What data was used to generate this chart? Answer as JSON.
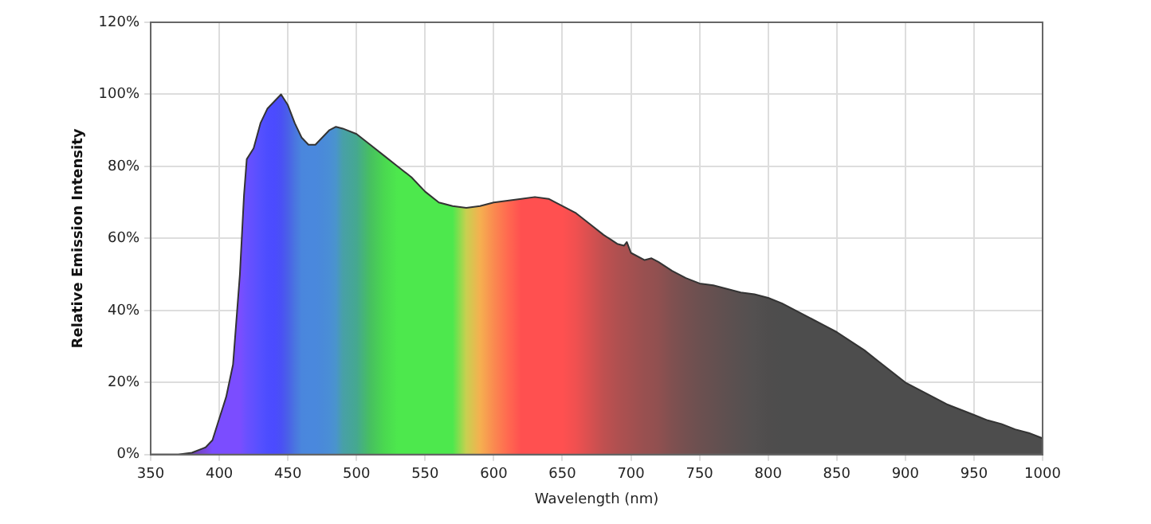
{
  "chart_data": {
    "type": "area",
    "xlabel": "Wavelength (nm)",
    "ylabel": "Relative Emission Intensity",
    "x": [
      350,
      370,
      380,
      390,
      395,
      400,
      405,
      410,
      415,
      418,
      420,
      425,
      430,
      435,
      440,
      445,
      450,
      455,
      460,
      465,
      470,
      475,
      480,
      485,
      490,
      500,
      510,
      520,
      530,
      540,
      550,
      560,
      570,
      580,
      590,
      600,
      610,
      620,
      630,
      640,
      650,
      660,
      670,
      680,
      690,
      695,
      697,
      700,
      710,
      715,
      720,
      730,
      740,
      750,
      760,
      770,
      780,
      790,
      800,
      810,
      820,
      830,
      840,
      850,
      860,
      870,
      880,
      890,
      900,
      910,
      920,
      930,
      940,
      950,
      960,
      970,
      980,
      990,
      1000
    ],
    "series": [
      {
        "color": "#333333",
        "values": [
          0,
          0,
          0.5,
          2,
          4,
          10,
          16,
          25,
          50,
          72,
          82,
          85,
          92,
          96,
          98,
          100,
          97,
          92,
          88,
          86,
          86,
          88,
          90,
          91,
          90.5,
          89,
          86,
          83,
          80,
          77,
          73,
          70,
          69,
          68.5,
          69,
          70,
          70.5,
          71,
          71.5,
          71,
          69,
          67,
          64,
          61,
          58.5,
          58,
          59,
          56,
          54,
          54.5,
          53.5,
          51,
          49,
          47.5,
          47,
          46,
          45,
          44.5,
          43.5,
          42,
          40,
          38,
          36,
          34,
          31.5,
          29,
          26,
          23,
          20,
          18,
          16,
          14,
          12.5,
          11,
          9.5,
          8.5,
          7,
          6,
          4.5
        ],
        "colors": [
          "#5a3a8a",
          "#5a3a8a",
          "#6a40b0",
          "#7a48e0",
          "#7b4dff",
          "#7b4dff",
          "#7b4dff",
          "#7b4dff",
          "#7b4dff",
          "#7050ff",
          "#6a50ff",
          "#6050ff",
          "#5550ff",
          "#4d4dff",
          "#4b4bff",
          "#4a50f5",
          "#4a60e8",
          "#4a75e0",
          "#4a86dd",
          "#4a88dd",
          "#4a88dd",
          "#4a8ad9",
          "#4a8ed6",
          "#4a94cc",
          "#48a0a8",
          "#45a890",
          "#47c060",
          "#4ad850",
          "#4de84d",
          "#4de84d",
          "#4de84d",
          "#4de84d",
          "#4de84d",
          "#c8d050",
          "#f5b050",
          "#fa8a50",
          "#ff6a50",
          "#ff5050",
          "#ff5050",
          "#ff5050",
          "#ff5050",
          "#f05050",
          "#d85050",
          "#c05050",
          "#b05050",
          "#aa5050",
          "#a85050",
          "#a45050",
          "#985050",
          "#955050",
          "#905050",
          "#805050",
          "#755050",
          "#6c5050",
          "#655050",
          "#5e5050",
          "#585050",
          "#535050",
          "#4f4d4d",
          "#4d4d4d",
          "#4d4d4d",
          "#4d4d4d",
          "#4d4d4d",
          "#4d4d4d",
          "#4d4d4d",
          "#4d4d4d",
          "#4d4d4d",
          "#4d4d4d",
          "#4d4d4d",
          "#4d4d4d",
          "#4d4d4d",
          "#4d4d4d",
          "#4d4d4d",
          "#4d4d4d",
          "#4d4d4d",
          "#4d4d4d",
          "#4d4d4d",
          "#4d4d4d",
          "#4d4d4d"
        ]
      }
    ],
    "xlim": [
      350,
      1000
    ],
    "xticks": [
      350,
      400,
      450,
      500,
      550,
      600,
      650,
      700,
      750,
      800,
      850,
      900,
      950,
      1000
    ],
    "ylim": [
      0,
      120
    ],
    "yticks": [
      {
        "value": 0,
        "label": "0%"
      },
      {
        "value": 20,
        "label": "20%"
      },
      {
        "value": 40,
        "label": "40%"
      },
      {
        "value": 60,
        "label": "60%"
      },
      {
        "value": 80,
        "label": "80%"
      },
      {
        "value": 100,
        "label": "100%"
      },
      {
        "value": 120,
        "label": "120%"
      }
    ],
    "grid": true,
    "legend": false,
    "marker": "none",
    "line_style": "solid"
  }
}
